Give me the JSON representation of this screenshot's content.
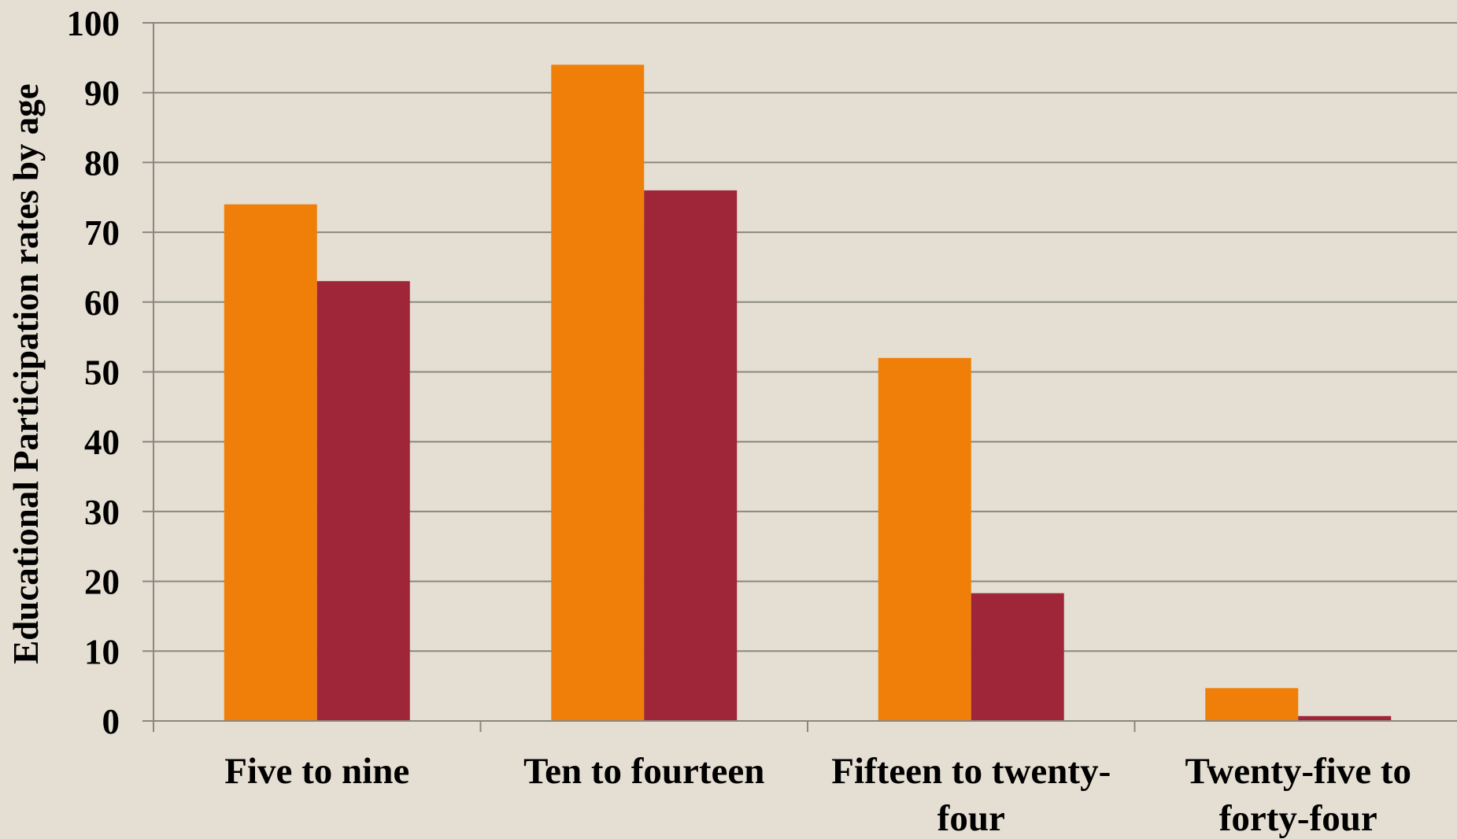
{
  "chart_data": {
    "type": "bar",
    "ylabel": "Educational Participation rates by age",
    "xlabel": "",
    "categories": [
      [
        "Five to nine"
      ],
      [
        "Ten to fourteen"
      ],
      [
        "Fifteen to twenty-",
        "four"
      ],
      [
        "Twenty-five to",
        "forty-four"
      ]
    ],
    "series": [
      {
        "color": "#f07f09",
        "values": [
          74,
          94,
          52,
          4.7
        ]
      },
      {
        "color": "#9e2638",
        "values": [
          63,
          76,
          18.3,
          0.7
        ]
      }
    ],
    "ylim": [
      0,
      100
    ],
    "yticks": [
      0,
      10,
      20,
      30,
      40,
      50,
      60,
      70,
      80,
      90,
      100
    ],
    "grid": true,
    "legend": "none"
  }
}
